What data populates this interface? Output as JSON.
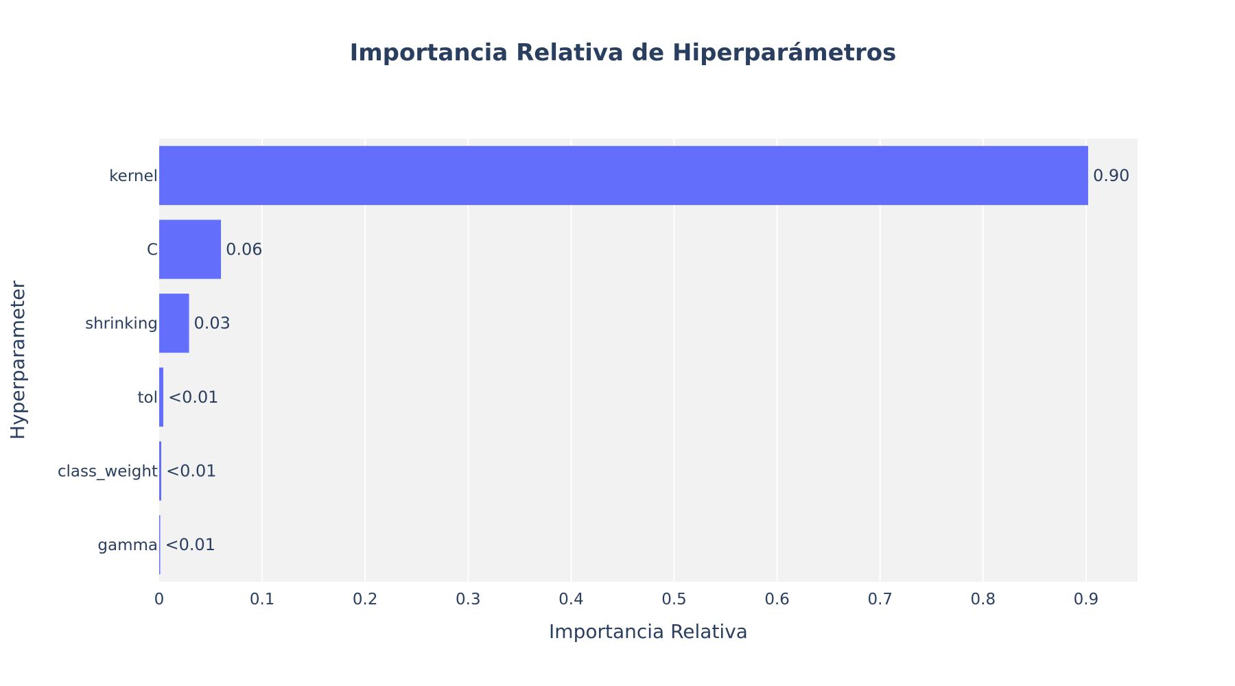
{
  "colors": {
    "text": "#2a3f5f",
    "bar": "#636efa",
    "plot_background": "#f2f2f2",
    "gridline": "#ffffff",
    "page_background": "#ffffff"
  },
  "chart_data": {
    "type": "bar",
    "orientation": "horizontal",
    "title": "Importancia Relativa de Hiperparámetros",
    "xlabel": "Importancia Relativa",
    "ylabel": "Hyperparameter",
    "xlim": [
      0,
      0.95
    ],
    "xticks": [
      0,
      0.1,
      0.2,
      0.3,
      0.4,
      0.5,
      0.6,
      0.7,
      0.8,
      0.9
    ],
    "xtick_labels": [
      "0",
      "0.1",
      "0.2",
      "0.3",
      "0.4",
      "0.5",
      "0.6",
      "0.7",
      "0.8",
      "0.9"
    ],
    "grid": true,
    "categories": [
      "kernel",
      "C",
      "shrinking",
      "tol",
      "class_weight",
      "gamma"
    ],
    "values": [
      0.902,
      0.06,
      0.029,
      0.004,
      0.002,
      0.001
    ],
    "data_labels": [
      "0.90",
      "0.06",
      "0.03",
      "<0.01",
      "<0.01",
      "<0.01"
    ]
  }
}
